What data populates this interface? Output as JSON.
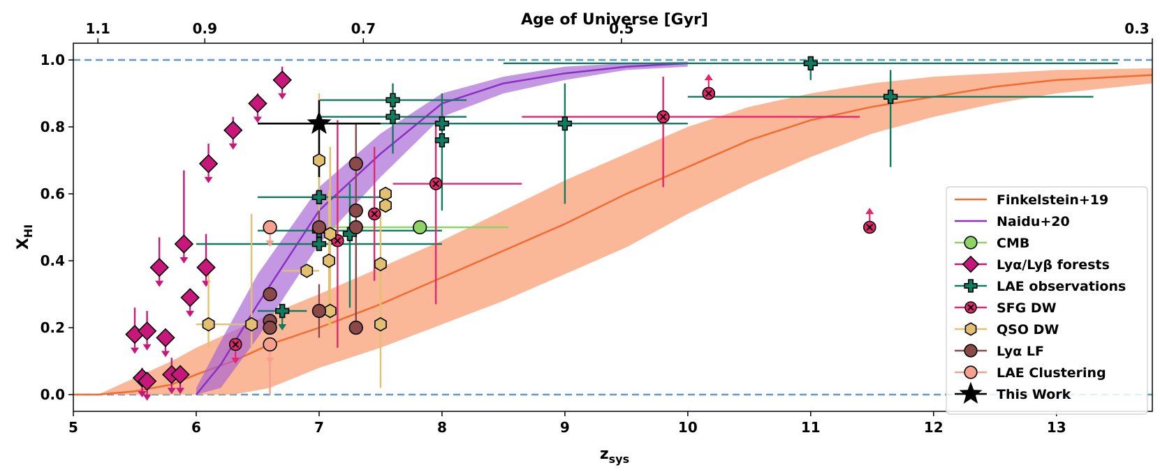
{
  "chart_data": {
    "type": "scatter",
    "title": "",
    "top_axis": {
      "label": "Age of Universe [Gyr]",
      "ticks": [
        {
          "label": "1.1",
          "z": 5.2
        },
        {
          "label": "0.9",
          "z": 6.07
        },
        {
          "label": "0.7",
          "z": 7.36
        },
        {
          "label": "0.5",
          "z": 9.46
        },
        {
          "label": "0.3",
          "z": 13.78
        }
      ]
    },
    "xlabel": "z_sys",
    "xlabel_main": "z",
    "xlabel_sub": "sys",
    "ylabel": "X_HI",
    "ylabel_main": "X",
    "ylabel_sub": "HI",
    "xlim": [
      5,
      13.78
    ],
    "ylim": [
      -0.05,
      1.05
    ],
    "xticks": [
      5,
      6,
      7,
      8,
      9,
      10,
      11,
      12,
      13
    ],
    "xtick_labels": [
      "5",
      "6",
      "7",
      "8",
      "9",
      "10",
      "11",
      "12",
      "13"
    ],
    "yticks": [
      0.0,
      0.2,
      0.4,
      0.6,
      0.8,
      1.0
    ],
    "ytick_labels": [
      "0.0",
      "0.2",
      "0.4",
      "0.6",
      "0.8",
      "1.0"
    ],
    "hlines": [
      0.0,
      1.0
    ],
    "colors": {
      "finkelstein": "#f46a2f",
      "finkelstein_band": "#f9a67e",
      "naidu": "#8a2fc0",
      "naidu_band": "#a460d4",
      "cmb": "#8dd366",
      "forest": "#c8177a",
      "lae": "#0f7b5f",
      "sfg": "#e8246c",
      "qso": "#e3c06f",
      "lf": "#8b4a4a",
      "clustering": "#f7a08e",
      "thiswork": "#000000",
      "hline": "#5b9bc0"
    },
    "legend": [
      {
        "key": "finkelstein",
        "label": "Finkelstein+19",
        "kind": "line"
      },
      {
        "key": "naidu",
        "label": "Naidu+20",
        "kind": "line"
      },
      {
        "key": "cmb",
        "label": "CMB",
        "kind": "circle"
      },
      {
        "key": "forest",
        "label": "Lyα/Lyβ forests",
        "kind": "diamond"
      },
      {
        "key": "lae",
        "label": "LAE observations",
        "kind": "plus"
      },
      {
        "key": "sfg",
        "label": "SFG DW",
        "kind": "x"
      },
      {
        "key": "qso",
        "label": "QSO DW",
        "kind": "hexagon"
      },
      {
        "key": "lf",
        "label": "Lyα LF",
        "kind": "circle"
      },
      {
        "key": "clustering",
        "label": "LAE Clustering",
        "kind": "circle"
      },
      {
        "key": "thiswork",
        "label": "This Work",
        "kind": "star"
      }
    ],
    "series": [
      {
        "name": "Finkelstein+19",
        "key": "finkelstein",
        "type": "line_band",
        "x": [
          5.0,
          5.2,
          5.5,
          5.8,
          6.0,
          6.3,
          6.6,
          7.0,
          7.5,
          8.0,
          8.5,
          9.0,
          9.5,
          10.0,
          10.5,
          11.0,
          11.5,
          12.0,
          12.5,
          13.0,
          13.78
        ],
        "y": [
          0.0,
          0.0,
          0.01,
          0.03,
          0.06,
          0.1,
          0.15,
          0.2,
          0.27,
          0.35,
          0.43,
          0.51,
          0.6,
          0.68,
          0.76,
          0.82,
          0.86,
          0.89,
          0.92,
          0.94,
          0.955
        ],
        "upper": [
          0.0,
          0.0,
          0.05,
          0.1,
          0.14,
          0.19,
          0.24,
          0.3,
          0.38,
          0.46,
          0.55,
          0.64,
          0.72,
          0.8,
          0.86,
          0.9,
          0.93,
          0.95,
          0.96,
          0.97,
          0.975
        ],
        "lower": [
          0.0,
          0.0,
          0.0,
          0.0,
          0.0,
          0.0,
          0.02,
          0.08,
          0.14,
          0.21,
          0.28,
          0.36,
          0.44,
          0.54,
          0.63,
          0.71,
          0.78,
          0.83,
          0.87,
          0.9,
          0.93
        ]
      },
      {
        "name": "Naidu+20",
        "key": "naidu",
        "type": "line_band",
        "x": [
          6.0,
          6.2,
          6.5,
          7.0,
          7.5,
          8.0,
          8.5,
          9.0,
          9.5,
          10.0
        ],
        "y": [
          0.0,
          0.09,
          0.27,
          0.55,
          0.72,
          0.87,
          0.93,
          0.96,
          0.98,
          0.99
        ],
        "upper": [
          0.02,
          0.16,
          0.36,
          0.62,
          0.78,
          0.9,
          0.95,
          0.98,
          0.99,
          0.995
        ],
        "lower": [
          0.0,
          0.02,
          0.17,
          0.45,
          0.65,
          0.83,
          0.9,
          0.94,
          0.97,
          0.98
        ]
      },
      {
        "name": "CMB",
        "key": "cmb",
        "marker": "circle",
        "points": [
          {
            "x": 7.82,
            "y": 0.5,
            "xerr": [
              0.72,
              0.72
            ],
            "yerr": [
              0,
              0
            ]
          }
        ]
      },
      {
        "name": "Lyα/Lyβ forests",
        "key": "forest",
        "marker": "diamond",
        "points": [
          {
            "x": 5.5,
            "y": 0.18,
            "yerr": [
              0.0,
              0.08
            ],
            "ul": true
          },
          {
            "x": 5.56,
            "y": 0.05,
            "yerr": [
              0.0,
              0.03
            ],
            "ul": true
          },
          {
            "x": 5.6,
            "y": 0.04,
            "yerr": [
              0.0,
              0.02
            ],
            "ul": true
          },
          {
            "x": 5.6,
            "y": 0.19,
            "yerr": [
              0.0,
              0.06
            ],
            "ul": true
          },
          {
            "x": 5.7,
            "y": 0.38,
            "yerr": [
              0.0,
              0.09
            ],
            "ul": true
          },
          {
            "x": 5.75,
            "y": 0.17,
            "yerr": [
              0.0,
              0.0
            ],
            "ul": true
          },
          {
            "x": 5.8,
            "y": 0.06,
            "yerr": [
              0.0,
              0.05
            ],
            "ul": true
          },
          {
            "x": 5.87,
            "y": 0.06,
            "yerr": [
              0.0,
              0.0
            ],
            "ul": true
          },
          {
            "x": 5.9,
            "y": 0.45,
            "yerr": [
              0.0,
              0.22
            ],
            "ul": true
          },
          {
            "x": 5.95,
            "y": 0.29,
            "yerr": [
              0.0,
              0.0
            ],
            "ul": true
          },
          {
            "x": 6.08,
            "y": 0.38,
            "yerr": [
              0.0,
              0.1
            ],
            "ul": true
          },
          {
            "x": 6.1,
            "y": 0.69,
            "yerr": [
              0.0,
              0.06
            ],
            "ul": true
          },
          {
            "x": 6.3,
            "y": 0.79,
            "yerr": [
              0.0,
              0.04
            ],
            "ul": true
          },
          {
            "x": 6.5,
            "y": 0.87,
            "yerr": [
              0.0,
              0.03
            ],
            "ul": true
          },
          {
            "x": 6.7,
            "y": 0.94,
            "yerr": [
              0.0,
              0.04
            ],
            "ul": true
          }
        ]
      },
      {
        "name": "LAE observations",
        "key": "lae",
        "marker": "plus",
        "points": [
          {
            "x": 6.7,
            "y": 0.25,
            "xerr": [
              0.2,
              0.2
            ],
            "yerr": [
              0.0,
              0.0
            ],
            "ul": true
          },
          {
            "x": 7.0,
            "y": 0.59,
            "xerr": [
              0.5,
              0.5
            ],
            "yerr": [
              0.15,
              0.11
            ]
          },
          {
            "x": 7.0,
            "y": 0.45,
            "xerr": [
              1.0,
              1.0
            ],
            "yerr": [
              0.0,
              0.0
            ]
          },
          {
            "x": 7.0,
            "y": 0.49,
            "xerr": [
              0.5,
              1.0
            ],
            "yerr": [
              0.0,
              0.0
            ]
          },
          {
            "x": 7.25,
            "y": 0.48,
            "xerr": [
              0.0,
              0.0
            ],
            "yerr": [
              0.22,
              0.15
            ]
          },
          {
            "x": 7.6,
            "y": 0.88,
            "xerr": [
              0.6,
              0.6
            ],
            "yerr": [
              0.05,
              0.05
            ]
          },
          {
            "x": 7.6,
            "y": 0.83,
            "xerr": [
              0.6,
              0.6
            ],
            "yerr": [
              0.11,
              0.06
            ]
          },
          {
            "x": 8.0,
            "y": 0.81,
            "xerr": [
              1.0,
              1.0
            ],
            "yerr": [
              0.26,
              0.09
            ]
          },
          {
            "x": 8.0,
            "y": 0.76,
            "xerr": [
              0.0,
              0.0
            ],
            "yerr": [
              0.0,
              0.0
            ]
          },
          {
            "x": 9.0,
            "y": 0.81,
            "xerr": [
              1.0,
              1.0
            ],
            "yerr": [
              0.24,
              0.12
            ]
          },
          {
            "x": 11.0,
            "y": 0.99,
            "xerr": [
              2.5,
              2.5
            ],
            "yerr": [
              0.05,
              0.0
            ]
          },
          {
            "x": 11.65,
            "y": 0.89,
            "xerr": [
              1.65,
              1.65
            ],
            "yerr": [
              0.21,
              0.08
            ]
          }
        ]
      },
      {
        "name": "SFG DW",
        "key": "sfg",
        "marker": "x",
        "points": [
          {
            "x": 6.32,
            "y": 0.15,
            "yerr": [
              0.0,
              0.0
            ],
            "ul": true
          },
          {
            "x": 7.15,
            "y": 0.46,
            "yerr": [
              0.32,
              0.36
            ]
          },
          {
            "x": 7.45,
            "y": 0.54,
            "yerr": [
              0.2,
              0.2
            ]
          },
          {
            "x": 7.95,
            "y": 0.63,
            "xerr": [
              0.35,
              0.7
            ],
            "yerr": [
              0.36,
              0.18
            ]
          },
          {
            "x": 9.8,
            "y": 0.83,
            "xerr": [
              1.15,
              1.6
            ],
            "yerr": [
              0.21,
              0.12
            ]
          },
          {
            "x": 10.17,
            "y": 0.9,
            "yerr": [
              0.0,
              0.0
            ],
            "ll": true
          },
          {
            "x": 11.48,
            "y": 0.5,
            "yerr": [
              0.0,
              0.0
            ],
            "ll": true
          }
        ]
      },
      {
        "name": "QSO DW",
        "key": "qso",
        "marker": "hexagon",
        "points": [
          {
            "x": 6.1,
            "y": 0.21,
            "xerr": [
              0.1,
              0.3
            ],
            "yerr": [
              0.07,
              0.17
            ]
          },
          {
            "x": 6.45,
            "y": 0.21,
            "yerr": [
              0.07,
              0.33
            ]
          },
          {
            "x": 6.9,
            "y": 0.37,
            "xerr": [
              0.2,
              0.1
            ],
            "yerr": [
              0.0,
              0.0
            ]
          },
          {
            "x": 7.0,
            "y": 0.7,
            "yerr": [
              0.25,
              0.2
            ]
          },
          {
            "x": 7.08,
            "y": 0.4,
            "yerr": [
              0.19,
              0.21
            ]
          },
          {
            "x": 7.09,
            "y": 0.25,
            "yerr": [
              0.05,
              0.05
            ]
          },
          {
            "x": 7.09,
            "y": 0.48,
            "yerr": [
              0.26,
              0.26
            ]
          },
          {
            "x": 7.5,
            "y": 0.21,
            "yerr": [
              0.19,
              0.19
            ]
          },
          {
            "x": 7.5,
            "y": 0.39,
            "yerr": [
              0.17,
              0.17
            ]
          },
          {
            "x": 7.54,
            "y": 0.6,
            "yerr": [
              0.0,
              0.0
            ]
          },
          {
            "x": 7.54,
            "y": 0.565,
            "yerr": [
              0.0,
              0.0
            ]
          }
        ]
      },
      {
        "name": "Lyα LF",
        "key": "lf",
        "marker": "circle",
        "points": [
          {
            "x": 6.6,
            "y": 0.3,
            "yerr": [
              0.0,
              0.0
            ]
          },
          {
            "x": 6.6,
            "y": 0.22,
            "yerr": [
              0.0,
              0.0
            ]
          },
          {
            "x": 6.6,
            "y": 0.2,
            "yerr": [
              0.0,
              0.0
            ]
          },
          {
            "x": 7.0,
            "y": 0.5,
            "yerr": [
              0.0,
              0.05
            ]
          },
          {
            "x": 7.0,
            "y": 0.25,
            "yerr": [
              0.08,
              0.08
            ]
          },
          {
            "x": 7.3,
            "y": 0.69,
            "yerr": [
              0.0,
              0.12
            ]
          },
          {
            "x": 7.3,
            "y": 0.55,
            "yerr": [
              0.3,
              0.2
            ]
          },
          {
            "x": 7.3,
            "y": 0.5,
            "yerr": [
              0.3,
              0.3
            ]
          },
          {
            "x": 7.3,
            "y": 0.2,
            "yerr": [
              0.0,
              0.05
            ]
          }
        ]
      },
      {
        "name": "LAE Clustering",
        "key": "clustering",
        "marker": "circle",
        "points": [
          {
            "x": 6.6,
            "y": 0.5,
            "yerr": [
              0.0,
              0.0
            ],
            "ul": true
          },
          {
            "x": 6.6,
            "y": 0.15,
            "yerr": [
              0.15,
              0.0
            ],
            "ul": true
          }
        ]
      },
      {
        "name": "This Work",
        "key": "thiswork",
        "marker": "star",
        "points": [
          {
            "x": 7.0,
            "y": 0.81,
            "xerr": [
              0.5,
              0.5
            ],
            "yerr": [
              0.16,
              0.07
            ]
          }
        ]
      }
    ]
  }
}
